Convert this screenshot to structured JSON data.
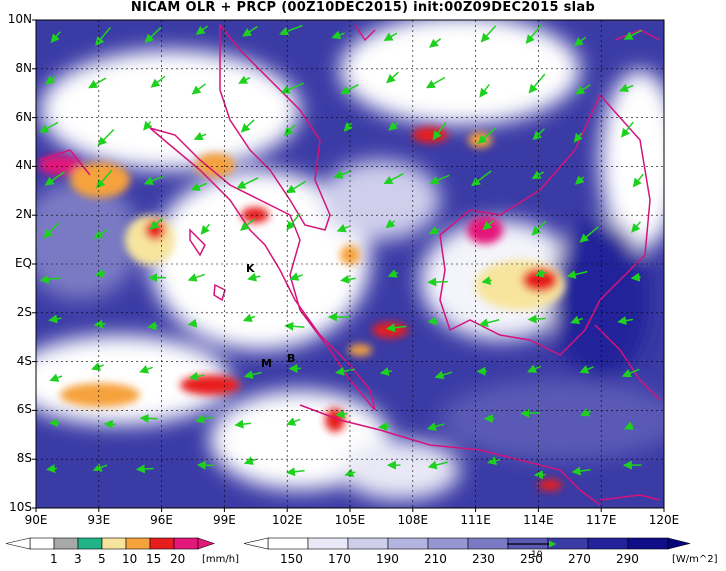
{
  "title": "NICAM OLR + PRCP (00Z10DEC2015) init:00Z09DEC2015 slab",
  "map": {
    "lat_labels": [
      "10N",
      "8N",
      "6N",
      "4N",
      "2N",
      "EQ",
      "2S",
      "4S",
      "6S",
      "8S",
      "10S"
    ],
    "lon_labels": [
      "90E",
      "93E",
      "96E",
      "99E",
      "102E",
      "105E",
      "108E",
      "111E",
      "114E",
      "117E",
      "120E"
    ],
    "place_markers": [
      "K",
      "M",
      "B"
    ],
    "wind_color": "#1fd11f",
    "border_color": "#d4147a"
  },
  "precip_bar": {
    "labels": [
      "1",
      "3",
      "5",
      "10",
      "15",
      "20"
    ],
    "unit": "[mm/h]",
    "colors": [
      "#ffffff",
      "#a8a8a8",
      "#20b487",
      "#f7e59e",
      "#f6a23c",
      "#e81e1e",
      "#e4187a"
    ]
  },
  "olr_bar": {
    "labels": [
      "150",
      "170",
      "190",
      "210",
      "230",
      "250",
      "270",
      "290"
    ],
    "unit": "[W/m^2]",
    "colors": [
      "#ffffff",
      "#e8e8f6",
      "#cfcfec",
      "#b4b4e0",
      "#9696d2",
      "#7a7ac4",
      "#5a5ab6",
      "#3b3ba6",
      "#22229a",
      "#0e0e88"
    ]
  },
  "vector_reference": "10"
}
